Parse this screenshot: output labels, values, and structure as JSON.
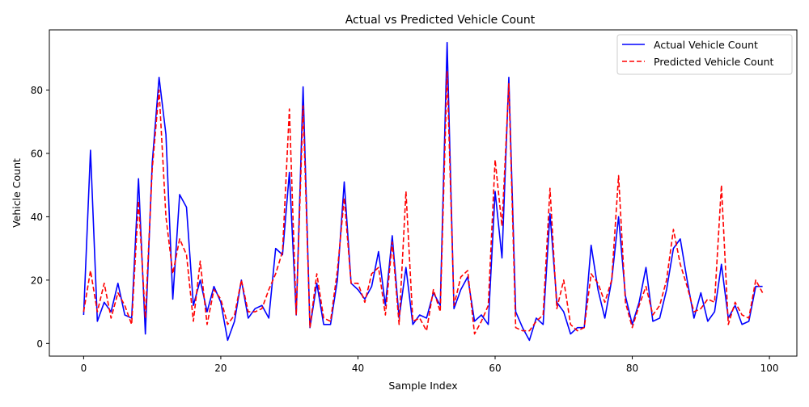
{
  "chart_data": {
    "type": "line",
    "title": "Actual vs Predicted Vehicle Count",
    "xlabel": "Sample Index",
    "ylabel": "Vehicle Count",
    "xlim": [
      -5,
      104
    ],
    "ylim": [
      -4,
      99
    ],
    "xticks": [
      0,
      20,
      40,
      60,
      80,
      100
    ],
    "yticks": [
      0,
      20,
      40,
      60,
      80
    ],
    "grid": false,
    "legend_position": "top-right",
    "x": [
      0,
      1,
      2,
      3,
      4,
      5,
      6,
      7,
      8,
      9,
      10,
      11,
      12,
      13,
      14,
      15,
      16,
      17,
      18,
      19,
      20,
      21,
      22,
      23,
      24,
      25,
      26,
      27,
      28,
      29,
      30,
      31,
      32,
      33,
      34,
      35,
      36,
      37,
      38,
      39,
      40,
      41,
      42,
      43,
      44,
      45,
      46,
      47,
      48,
      49,
      50,
      51,
      52,
      53,
      54,
      55,
      56,
      57,
      58,
      59,
      60,
      61,
      62,
      63,
      64,
      65,
      66,
      67,
      68,
      69,
      70,
      71,
      72,
      73,
      74,
      75,
      76,
      77,
      78,
      79,
      80,
      81,
      82,
      83,
      84,
      85,
      86,
      87,
      88,
      89,
      90,
      91,
      92,
      93,
      94,
      95,
      96,
      97,
      98,
      99
    ],
    "series": [
      {
        "name": "Actual Vehicle Count",
        "color": "#0000ff",
        "style": "solid",
        "values": [
          9,
          61,
          7,
          13,
          10,
          19,
          9,
          8,
          52,
          3,
          57,
          84,
          66,
          14,
          47,
          43,
          12,
          20,
          10,
          18,
          13,
          1,
          7,
          20,
          8,
          11,
          12,
          8,
          30,
          28,
          54,
          9,
          81,
          5,
          19,
          6,
          6,
          20,
          51,
          19,
          17,
          14,
          18,
          29,
          12,
          34,
          8,
          24,
          6,
          9,
          8,
          16,
          12,
          95,
          11,
          17,
          21,
          7,
          9,
          6,
          48,
          27,
          84,
          10,
          5,
          1,
          8,
          6,
          41,
          13,
          10,
          3,
          5,
          5,
          31,
          17,
          8,
          20,
          40,
          15,
          6,
          13,
          24,
          7,
          8,
          17,
          30,
          33,
          20,
          8,
          16,
          7,
          10,
          25,
          8,
          12,
          6,
          7,
          18,
          18
        ]
      },
      {
        "name": "Predicted Vehicle Count",
        "color": "#ff0000",
        "style": "dashed",
        "values": [
          10,
          23,
          10,
          19,
          8,
          16,
          12,
          6,
          45,
          8,
          55,
          80,
          40,
          22,
          33,
          28,
          7,
          26,
          6,
          17,
          14,
          6,
          9,
          20,
          10,
          10,
          11,
          17,
          22,
          29,
          74,
          9,
          75,
          5,
          22,
          8,
          7,
          23,
          46,
          19,
          19,
          13,
          22,
          24,
          9,
          32,
          6,
          48,
          7,
          8,
          4,
          17,
          10,
          86,
          12,
          21,
          23,
          3,
          7,
          12,
          58,
          37,
          82,
          5,
          4,
          4,
          7,
          9,
          49,
          11,
          20,
          6,
          4,
          5,
          22,
          19,
          13,
          20,
          53,
          13,
          5,
          12,
          18,
          9,
          12,
          20,
          36,
          25,
          18,
          10,
          11,
          14,
          13,
          50,
          6,
          13,
          9,
          8,
          20,
          16
        ]
      }
    ]
  }
}
